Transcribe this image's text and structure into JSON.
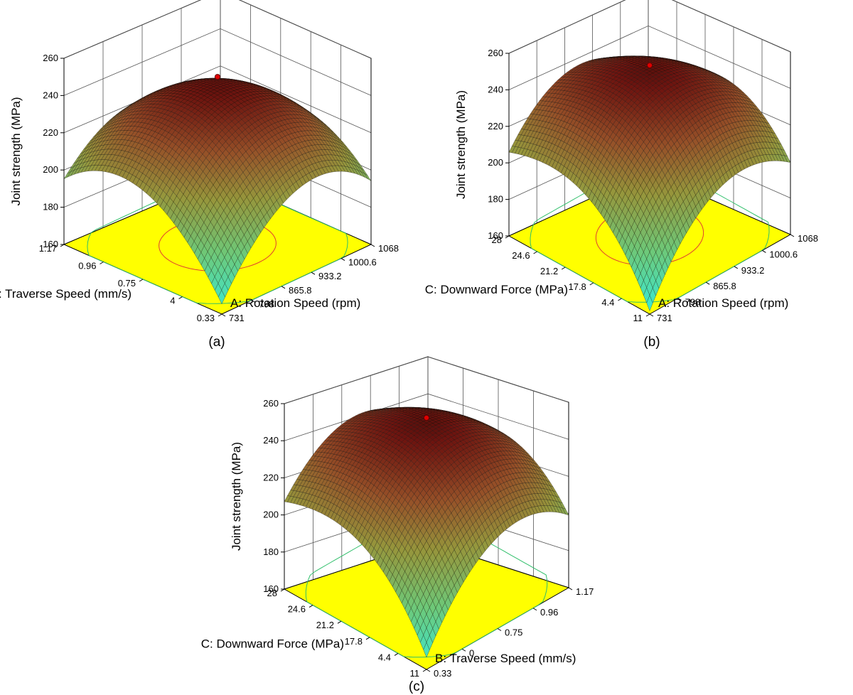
{
  "chart_data": [
    {
      "type": "surface",
      "label": "(a)",
      "z_axis": {
        "label": "Joint strength (MPa)",
        "ticks": [
          "160",
          "180",
          "200",
          "220",
          "240",
          "260"
        ],
        "range": [
          160,
          260
        ]
      },
      "x_axis": {
        "label": "A: Rotation Speed (rpm)",
        "ticks": [
          "731",
          "798",
          "865.8",
          "933.2",
          "1000.6",
          "1068"
        ],
        "range": [
          731,
          1068
        ]
      },
      "y_axis": {
        "label": "B: Traverse Speed (mm/s)",
        "ticks": [
          "0.33",
          "0.54",
          "0.75",
          "0.96",
          "1.17"
        ],
        "tick_labels_shown": [
          "0.33",
          "4",
          "0.75",
          "0.96",
          "1.17"
        ],
        "range": [
          0.33,
          1.17
        ]
      },
      "surface": {
        "peak": 250,
        "corner_left": 198,
        "corner_right": 196,
        "corner_near": 161,
        "corner_far": 218
      },
      "optimum_marker": {
        "value": 250
      },
      "base_color": "#ffff00",
      "contours": [
        "red",
        "green"
      ]
    },
    {
      "type": "surface",
      "label": "(b)",
      "z_axis": {
        "label": "Joint strength (MPa)",
        "ticks": [
          "160",
          "180",
          "200",
          "220",
          "240",
          "260"
        ],
        "range": [
          160,
          260
        ]
      },
      "x_axis": {
        "label": "A: Rotation Speed (rpm)",
        "ticks": [
          "731",
          "798",
          "865.8",
          "933.2",
          "1000.6",
          "1068"
        ],
        "range": [
          731,
          1068
        ]
      },
      "y_axis": {
        "label": "C: Downward Force (MPa)",
        "ticks": [
          "11",
          "14.4",
          "17.8",
          "21.2",
          "24.6",
          "28"
        ],
        "tick_labels_shown": [
          "11",
          "4.4",
          "17.8",
          "21.2",
          "24.6",
          "28"
        ],
        "range": [
          11,
          28
        ]
      },
      "surface": {
        "peak": 253,
        "corner_left": 219,
        "corner_right": 207,
        "corner_near": 157,
        "corner_far": 232
      },
      "optimum_marker": {
        "value": 253
      },
      "base_color": "#ffff00",
      "contours": [
        "red",
        "green"
      ]
    },
    {
      "type": "surface",
      "label": "(c)",
      "z_axis": {
        "label": "Joint strength (MPa)",
        "ticks": [
          "160",
          "180",
          "200",
          "220",
          "240",
          "260"
        ],
        "range": [
          160,
          260
        ]
      },
      "x_axis": {
        "label": "B: Traverse Speed (mm/s)",
        "ticks": [
          "0.33",
          "0.54",
          "0.75",
          "0.96",
          "1.17"
        ],
        "tick_labels_shown": [
          "0.33",
          "0",
          "0.75",
          "0.96",
          "1.17"
        ],
        "range": [
          0.33,
          1.17
        ]
      },
      "y_axis": {
        "label": "C: Downward Force (MPa)",
        "ticks": [
          "11",
          "14.4",
          "17.8",
          "21.2",
          "24.6",
          "28"
        ],
        "tick_labels_shown": [
          "11",
          "4.4",
          "17.8",
          "21.2",
          "24.6",
          "28"
        ],
        "range": [
          11,
          28
        ]
      },
      "surface": {
        "peak": 252,
        "corner_left": 219,
        "corner_right": 204,
        "corner_near": 162,
        "corner_far": 230
      },
      "optimum_marker": {
        "value": 252
      },
      "base_color": "#ffff00",
      "contours": [
        "green"
      ]
    }
  ]
}
